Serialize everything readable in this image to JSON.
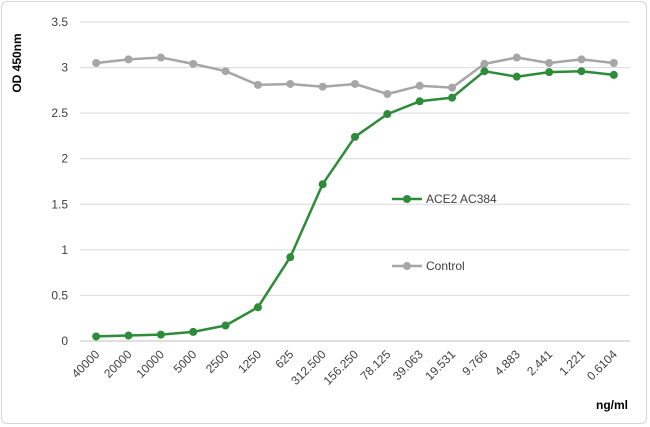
{
  "chart_data": {
    "type": "line",
    "xlabel": "ng/ml",
    "ylabel": "OD 450nm",
    "ylim": [
      0,
      3.5
    ],
    "yticks": [
      "0",
      "0.5",
      "1",
      "1.5",
      "2",
      "2.5",
      "3",
      "3.5"
    ],
    "categories": [
      "40000",
      "20000",
      "10000",
      "5000",
      "2500",
      "1250",
      "625",
      "312.500",
      "156.250",
      "78.125",
      "39.063",
      "19.531",
      "9.766",
      "4.883",
      "2.441",
      "1.221",
      "0.6104"
    ],
    "grid": true,
    "legend_position": "right",
    "series": [
      {
        "name": "ACE2 AC384",
        "color": "#2e8b3a",
        "values": [
          0.05,
          0.06,
          0.07,
          0.1,
          0.17,
          0.37,
          0.92,
          1.72,
          2.24,
          2.49,
          2.63,
          2.67,
          2.96,
          2.9,
          2.95,
          2.96,
          2.92
        ]
      },
      {
        "name": "Control",
        "color": "#a6a6a6",
        "values": [
          3.05,
          3.09,
          3.11,
          3.04,
          2.96,
          2.81,
          2.82,
          2.79,
          2.82,
          2.71,
          2.8,
          2.78,
          3.04,
          3.11,
          3.05,
          3.09,
          3.05
        ]
      }
    ]
  }
}
